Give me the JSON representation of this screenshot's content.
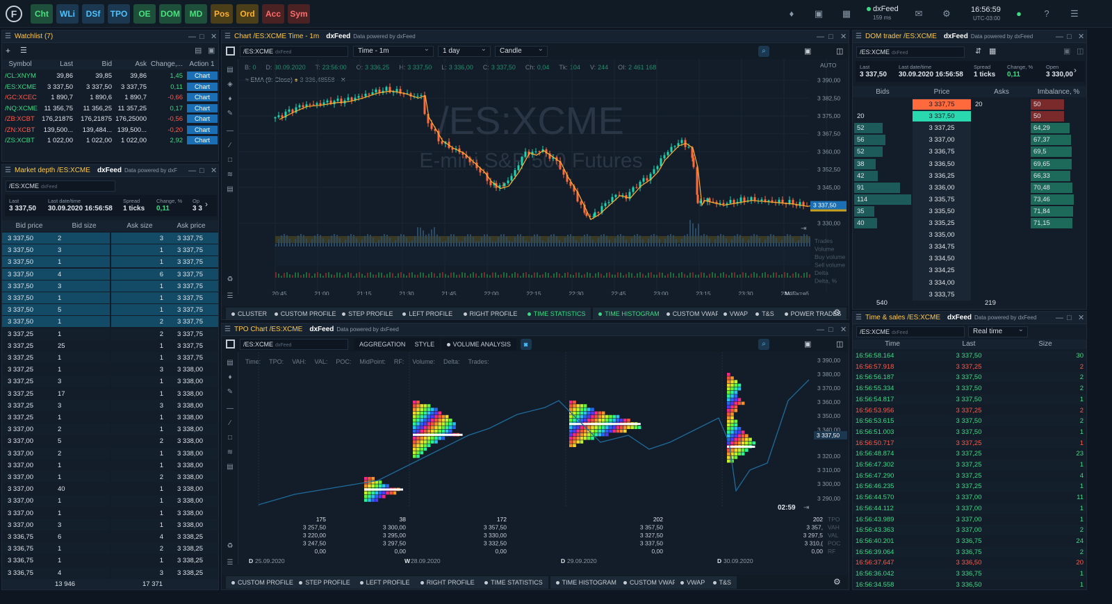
{
  "topbar": {
    "buttons": [
      {
        "label": "Cht",
        "style": "g"
      },
      {
        "label": "WLi",
        "style": "b"
      },
      {
        "label": "DSf",
        "style": "b"
      },
      {
        "label": "TPO",
        "style": "b"
      },
      {
        "label": "OE",
        "style": "g"
      },
      {
        "label": "DOM",
        "style": "g"
      },
      {
        "label": "MD",
        "style": "g"
      },
      {
        "label": "Pos",
        "style": "o"
      },
      {
        "label": "Ord",
        "style": "o"
      },
      {
        "label": "Acc",
        "style": "r"
      },
      {
        "label": "Sym",
        "style": "r"
      }
    ],
    "feed": "dxFeed",
    "latency": "159 ms",
    "time": "16:56:59",
    "tz": "UTC-03:00"
  },
  "watchlist": {
    "title": "Watchlist (7)",
    "columns": [
      "Symbol",
      "Last",
      "Bid",
      "Ask",
      "Change,...",
      "Action 1"
    ],
    "rows": [
      {
        "symbol": "/CL:XNYM",
        "last": "39,86",
        "bid": "39,85",
        "ask": "39,86",
        "change": "1,45",
        "action": "Chart",
        "color": "green"
      },
      {
        "symbol": "/ES:XCME",
        "last": "3 337,50",
        "bid": "3 337,50",
        "ask": "3 337,75",
        "change": "0,11",
        "action": "Chart",
        "color": "green"
      },
      {
        "symbol": "/GC:XCEC",
        "last": "1 890,7",
        "bid": "1 890,6",
        "ask": "1 890,7",
        "change": "-0,66",
        "action": "Chart",
        "color": "red"
      },
      {
        "symbol": "/NQ:XCME",
        "last": "11 356,75",
        "bid": "11 356,25",
        "ask": "11 357,25",
        "change": "0,17",
        "action": "Chart",
        "color": "green"
      },
      {
        "symbol": "/ZB:XCBT",
        "last": "176,21875",
        "bid": "176,21875",
        "ask": "176,25000",
        "change": "-0,56",
        "action": "Chart",
        "color": "red"
      },
      {
        "symbol": "/ZN:XCBT",
        "last": "139,500...",
        "bid": "139,484...",
        "ask": "139,500...",
        "change": "-0,20",
        "action": "Chart",
        "color": "red"
      },
      {
        "symbol": "/ZS:XCBT",
        "last": "1 022,00",
        "bid": "1 022,00",
        "ask": "1 022,00",
        "change": "2,92",
        "action": "Chart",
        "color": "green"
      }
    ]
  },
  "market_depth": {
    "title": "Market depth /ES:XCME",
    "source": "dxFeed",
    "powered": "Data powered by dxF",
    "symbol": "/ES:XCME",
    "feed": "dxFeed",
    "stats": [
      {
        "label": "Last",
        "value": "3 337,50"
      },
      {
        "label": "Last date/time",
        "value": "30.09.2020 16:56:58"
      },
      {
        "label": "Spread",
        "value": "1 ticks"
      },
      {
        "label": "Change, %",
        "value": "0,11"
      },
      {
        "label": "Op",
        "value": "3 3"
      }
    ],
    "columns": [
      "Bid price",
      "Bid size",
      "Ask size",
      "Ask price"
    ],
    "rows": [
      [
        "3 337,50",
        "2",
        "3",
        "3 337,75"
      ],
      [
        "3 337,50",
        "3",
        "1",
        "3 337,75"
      ],
      [
        "3 337,50",
        "1",
        "1",
        "3 337,75"
      ],
      [
        "3 337,50",
        "4",
        "6",
        "3 337,75"
      ],
      [
        "3 337,50",
        "3",
        "1",
        "3 337,75"
      ],
      [
        "3 337,50",
        "1",
        "1",
        "3 337,75"
      ],
      [
        "3 337,50",
        "5",
        "1",
        "3 337,75"
      ],
      [
        "3 337,50",
        "1",
        "2",
        "3 337,75"
      ],
      [
        "3 337,25",
        "1",
        "2",
        "3 337,75"
      ],
      [
        "3 337,25",
        "25",
        "1",
        "3 337,75"
      ],
      [
        "3 337,25",
        "1",
        "1",
        "3 337,75"
      ],
      [
        "3 337,25",
        "1",
        "3",
        "3 338,00"
      ],
      [
        "3 337,25",
        "3",
        "1",
        "3 338,00"
      ],
      [
        "3 337,25",
        "17",
        "1",
        "3 338,00"
      ],
      [
        "3 337,25",
        "3",
        "3",
        "3 338,00"
      ],
      [
        "3 337,25",
        "1",
        "1",
        "3 338,00"
      ],
      [
        "3 337,00",
        "2",
        "1",
        "3 338,00"
      ],
      [
        "3 337,00",
        "5",
        "2",
        "3 338,00"
      ],
      [
        "3 337,00",
        "2",
        "1",
        "3 338,00"
      ],
      [
        "3 337,00",
        "1",
        "1",
        "3 338,00"
      ],
      [
        "3 337,00",
        "1",
        "2",
        "3 338,00"
      ],
      [
        "3 337,00",
        "40",
        "1",
        "3 338,00"
      ],
      [
        "3 337,00",
        "1",
        "1",
        "3 338,00"
      ],
      [
        "3 337,00",
        "1",
        "1",
        "3 338,00"
      ],
      [
        "3 337,00",
        "3",
        "1",
        "3 338,00"
      ],
      [
        "3 336,75",
        "6",
        "4",
        "3 338,25"
      ],
      [
        "3 336,75",
        "1",
        "2",
        "3 338,25"
      ],
      [
        "3 336,75",
        "1",
        "1",
        "3 338,25"
      ],
      [
        "3 336,75",
        "4",
        "3",
        "3 338,25"
      ]
    ],
    "highlight_rows": 8,
    "total_bid": "13 946",
    "total_ask": "17 371"
  },
  "chart": {
    "title": "Chart /ES:XCME Time - 1m",
    "source": "dxFeed",
    "powered": "Data powered by dxFeed",
    "symbol": "/ES:XCME",
    "feed": "dxFeed",
    "timeframe": "Time - 1m",
    "period": "1 day",
    "style": "Candle",
    "ohlc": [
      {
        "k": "B:",
        "v": "0"
      },
      {
        "k": "D:",
        "v": "30.09.2020"
      },
      {
        "k": "T:",
        "v": "23:56:00"
      },
      {
        "k": "O:",
        "v": "3 336,25"
      },
      {
        "k": "H:",
        "v": "3 337,50"
      },
      {
        "k": "L:",
        "v": "3 336,00"
      },
      {
        "k": "C:",
        "v": "3 337,50"
      },
      {
        "k": "Ch:",
        "v": "0,04"
      },
      {
        "k": "Tk:",
        "v": "104"
      },
      {
        "k": "V:",
        "v": "244"
      },
      {
        "k": "OI:",
        "v": "2 461 168"
      }
    ],
    "ema_label": "EMA (9: Close)",
    "ema_value": "3 336,48558",
    "watermark": "/ES:XCME",
    "watermark_sub": "E-mini S&P 500 Futures",
    "auto": "AUTO",
    "yticks": [
      "3 390,00",
      "3 382,50",
      "3 375,00",
      "3 367,50",
      "3 360,00",
      "3 352,50",
      "3 345,00",
      "3 330,00"
    ],
    "price_tag": "3 337,50",
    "xticks": [
      "20:45",
      "21:00",
      "21:15",
      "21:30",
      "21:45",
      "22:00",
      "22:15",
      "22:30",
      "22:45",
      "23:00",
      "23:15",
      "23:30",
      "23:45"
    ],
    "x_month": "M",
    "x_month_label": "Октяб",
    "lower_labels": [
      "Trades",
      "Volume",
      "Buy volume",
      "Sell volume",
      "Delta",
      "Delta, %"
    ],
    "toolbar": [
      {
        "label": "CLUSTER"
      },
      {
        "label": "CUSTOM PROFILE"
      },
      {
        "label": "STEP PROFILE"
      },
      {
        "label": "LEFT PROFILE"
      },
      {
        "label": "RIGHT PROFILE"
      },
      {
        "label": "TIME STATISTICS",
        "active": true
      },
      {
        "label": "TIME HISTOGRAM",
        "active": true
      },
      {
        "label": "CUSTOM VWAP"
      },
      {
        "label": "VWAP"
      },
      {
        "label": "T&S"
      },
      {
        "label": "POWER TRADES"
      }
    ]
  },
  "tpo": {
    "title": "TPO Chart /ES:XCME",
    "source": "dxFeed",
    "powered": "Data powered by dxFeed",
    "symbol": "/ES:XCME",
    "feed": "dxFeed",
    "tabs": [
      {
        "label": "AGGREGATION"
      },
      {
        "label": "STYLE"
      },
      {
        "label": "VOLUME ANALYSIS"
      }
    ],
    "info": [
      "Time:",
      "TPO:",
      "VAH:",
      "VAL:",
      "POC:",
      "MidPoint:",
      "RF:",
      "Volume:",
      "Delta:",
      "Trades:"
    ],
    "yticks": [
      "3 390,00",
      "3 380,00",
      "3 370,00",
      "3 360,00",
      "3 350,00",
      "3 340,00",
      "3 320,00",
      "3 310,00",
      "3 300,00",
      "3 290,00"
    ],
    "price_tag": "3 337,50",
    "timer": "02:59",
    "stats": [
      [
        "175",
        "3 257,50",
        "3 220,00",
        "3 247,50",
        "0,00"
      ],
      [
        "38",
        "3 300,00",
        "3 295,00",
        "3 297,50",
        "0,00"
      ],
      [
        "172",
        "3 357,50",
        "3 330,00",
        "3 332,50",
        "0,00"
      ],
      [
        "202",
        "3 357,50",
        "3 327,50",
        "3 337,50",
        "0,00"
      ],
      [
        "202",
        "3 357,",
        "3 297,5",
        "3 310,(",
        "0,00"
      ]
    ],
    "stat_labels": [
      "TPO",
      "VAH",
      "VAL",
      "POC",
      "RF"
    ],
    "dates": [
      {
        "d": "D",
        "v": "25.09.2020"
      },
      {
        "d": "W",
        "v": "28.09.2020"
      },
      {
        "d": "D",
        "v": "29.09.2020"
      },
      {
        "d": "D",
        "v": "30.09.2020"
      }
    ],
    "toolbar": [
      {
        "label": "CUSTOM PROFILE"
      },
      {
        "label": "STEP PROFILE"
      },
      {
        "label": "LEFT PROFILE"
      },
      {
        "label": "RIGHT PROFILE"
      },
      {
        "label": "TIME STATISTICS"
      },
      {
        "label": "TIME HISTOGRAM"
      },
      {
        "label": "CUSTOM VWAP"
      },
      {
        "label": "VWAP"
      },
      {
        "label": "T&S"
      }
    ]
  },
  "dom": {
    "title": "DOM trader /ES:XCME",
    "source": "dxFeed",
    "powered": "Data powered by dxFeed",
    "symbol": "/ES:XCME",
    "feed": "dxFeed",
    "stats": [
      {
        "label": "Last",
        "value": "3 337,50"
      },
      {
        "label": "Last date/time",
        "value": "30.09.2020 16:56:58"
      },
      {
        "label": "Spread",
        "value": "1 ticks"
      },
      {
        "label": "Change, %",
        "value": "0,11"
      },
      {
        "label": "Open",
        "value": "3 330,00"
      }
    ],
    "columns": [
      "Bids",
      "Price",
      "Asks",
      "Imbalance, %"
    ],
    "rows": [
      {
        "bid": "",
        "price": "3 337,75",
        "ask": "20",
        "imb": "50",
        "bidw": 0,
        "imbw": 0.6,
        "type": "ask"
      },
      {
        "bid": "20",
        "price": "3 337,50",
        "ask": "",
        "imb": "50",
        "bidw": 0,
        "imbw": 0.6,
        "type": "bid"
      },
      {
        "bid": "52",
        "price": "3 337,25",
        "ask": "",
        "imb": "64,29",
        "bidw": 0.5,
        "imbw": 0.7
      },
      {
        "bid": "56",
        "price": "3 337,00",
        "ask": "",
        "imb": "67,37",
        "bidw": 0.55,
        "imbw": 0.72
      },
      {
        "bid": "52",
        "price": "3 336,75",
        "ask": "",
        "imb": "69,5",
        "bidw": 0.5,
        "imbw": 0.74
      },
      {
        "bid": "38",
        "price": "3 336,50",
        "ask": "",
        "imb": "69,65",
        "bidw": 0.38,
        "imbw": 0.74
      },
      {
        "bid": "42",
        "price": "3 336,25",
        "ask": "",
        "imb": "66,33",
        "bidw": 0.42,
        "imbw": 0.71
      },
      {
        "bid": "91",
        "price": "3 336,00",
        "ask": "",
        "imb": "70,48",
        "bidw": 0.8,
        "imbw": 0.75
      },
      {
        "bid": "114",
        "price": "3 335,75",
        "ask": "",
        "imb": "73,46",
        "bidw": 1,
        "imbw": 0.78
      },
      {
        "bid": "35",
        "price": "3 335,50",
        "ask": "",
        "imb": "71,84",
        "bidw": 0.35,
        "imbw": 0.76
      },
      {
        "bid": "40",
        "price": "3 335,25",
        "ask": "",
        "imb": "71,15",
        "bidw": 0.4,
        "imbw": 0.75
      },
      {
        "bid": "",
        "price": "3 335,00",
        "ask": "",
        "imb": "",
        "bidw": 0,
        "imbw": 0
      },
      {
        "bid": "",
        "price": "3 334,75",
        "ask": "",
        "imb": "",
        "bidw": 0,
        "imbw": 0
      },
      {
        "bid": "",
        "price": "3 334,50",
        "ask": "",
        "imb": "",
        "bidw": 0,
        "imbw": 0
      },
      {
        "bid": "",
        "price": "3 334,25",
        "ask": "",
        "imb": "",
        "bidw": 0,
        "imbw": 0
      },
      {
        "bid": "",
        "price": "3 334,00",
        "ask": "",
        "imb": "",
        "bidw": 0,
        "imbw": 0
      },
      {
        "bid": "",
        "price": "3 333,75",
        "ask": "",
        "imb": "",
        "bidw": 0,
        "imbw": 0
      }
    ],
    "total_bid": "540",
    "total_ask": "219"
  },
  "ts": {
    "title": "Time & sales /ES:XCME",
    "source": "dxFeed",
    "powered": "Data powered by dxFeed",
    "symbol": "/ES:XCME",
    "feed": "dxFeed",
    "mode": "Real time",
    "columns": [
      "Time",
      "Last",
      "Size"
    ],
    "rows": [
      [
        "16:56:58.164",
        "3 337,50",
        "30",
        "green"
      ],
      [
        "16:56:57.918",
        "3 337,25",
        "2",
        "red"
      ],
      [
        "16:56:56.187",
        "3 337,50",
        "2",
        "green"
      ],
      [
        "16:56:55.334",
        "3 337,50",
        "2",
        "green"
      ],
      [
        "16:56:54.817",
        "3 337,50",
        "1",
        "green"
      ],
      [
        "16:56:53.956",
        "3 337,25",
        "2",
        "red"
      ],
      [
        "16:56:53.615",
        "3 337,50",
        "2",
        "green"
      ],
      [
        "16:56:51.003",
        "3 337,50",
        "1",
        "green"
      ],
      [
        "16:56:50.717",
        "3 337,25",
        "1",
        "red"
      ],
      [
        "16:56:48.874",
        "3 337,25",
        "23",
        "green"
      ],
      [
        "16:56:47.302",
        "3 337,25",
        "1",
        "green"
      ],
      [
        "16:56:47.290",
        "3 337,25",
        "4",
        "green"
      ],
      [
        "16:56:46.235",
        "3 337,25",
        "1",
        "green"
      ],
      [
        "16:56:44.570",
        "3 337,00",
        "11",
        "green"
      ],
      [
        "16:56:44.112",
        "3 337,00",
        "1",
        "green"
      ],
      [
        "16:56:43.989",
        "3 337,00",
        "1",
        "green"
      ],
      [
        "16:56:43.363",
        "3 337,00",
        "2",
        "green"
      ],
      [
        "16:56:40.201",
        "3 336,75",
        "24",
        "green"
      ],
      [
        "16:56:39.064",
        "3 336,75",
        "2",
        "green"
      ],
      [
        "16:56:37.647",
        "3 336,50",
        "20",
        "red"
      ],
      [
        "16:56:36.042",
        "3 336,75",
        "1",
        "green"
      ],
      [
        "16:56:34.558",
        "3 336,50",
        "1",
        "green"
      ]
    ]
  }
}
